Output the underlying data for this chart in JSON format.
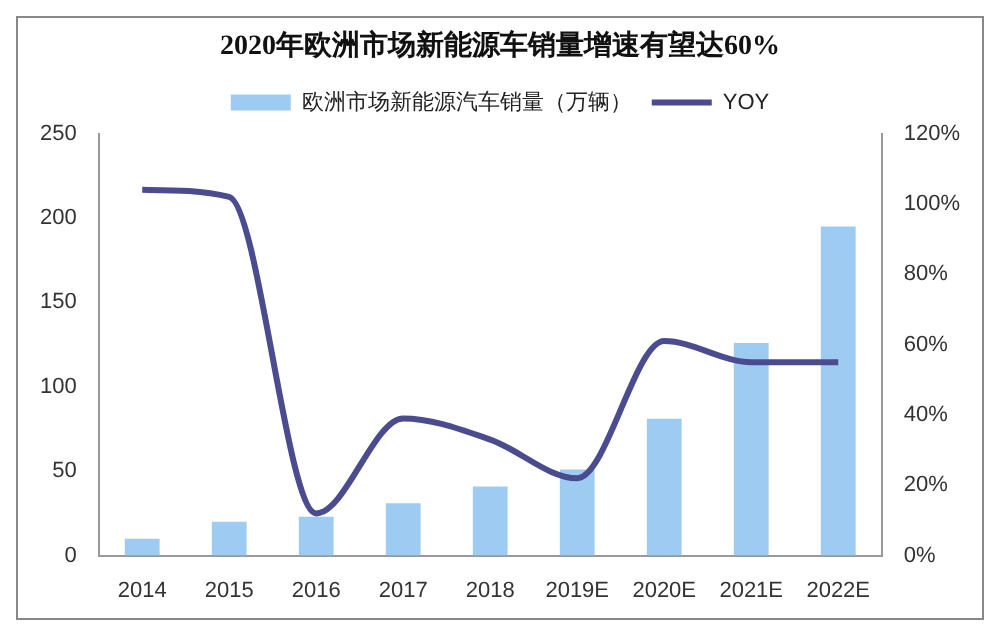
{
  "chart_data": {
    "type": "bar",
    "title": "2020年欧洲市场新能源车销量增速有望达60%",
    "categories": [
      "2014",
      "2015",
      "2016",
      "2017",
      "2018",
      "2019E",
      "2020E",
      "2021E",
      "2022E"
    ],
    "series": [
      {
        "name": "欧洲市场新能源汽车销量（万辆）",
        "color": "#9dcbf1",
        "values": [
          10,
          20,
          23,
          31,
          41,
          51,
          81,
          126,
          195
        ]
      },
      {
        "name": "YOY",
        "type": "line",
        "axis": "y2",
        "color": "#4b4b8f",
        "values": [
          104,
          102,
          12,
          39,
          33,
          22,
          61,
          55,
          55
        ]
      }
    ],
    "ylim": [
      0,
      250
    ],
    "yticks": [
      0,
      50,
      100,
      150,
      200,
      250
    ],
    "y2lim": [
      0,
      120
    ],
    "y2ticks": [
      {
        "value": 0,
        "label": "0%"
      },
      {
        "value": 20,
        "label": "20%"
      },
      {
        "value": 40,
        "label": "40%"
      },
      {
        "value": 60,
        "label": "60%"
      },
      {
        "value": 80,
        "label": "80%"
      },
      {
        "value": 100,
        "label": "100%"
      },
      {
        "value": 120,
        "label": "120%"
      }
    ],
    "legend": "top",
    "grid": false,
    "marker": "none",
    "line_style": "solid"
  }
}
